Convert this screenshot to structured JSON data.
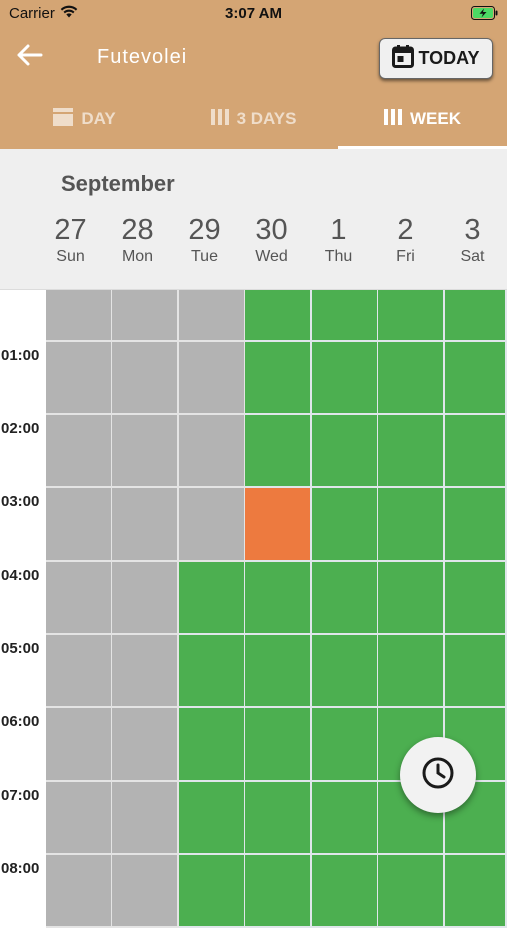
{
  "status_bar": {
    "carrier": "Carrier",
    "time": "3:07 AM"
  },
  "nav": {
    "title": "Futevolei",
    "today_label": "TODAY"
  },
  "tabs": [
    {
      "label": "DAY",
      "active": false
    },
    {
      "label": "3 DAYS",
      "active": false
    },
    {
      "label": "WEEK",
      "active": true
    }
  ],
  "calendar": {
    "month": "September",
    "days": [
      {
        "num": "27",
        "name": "Sun"
      },
      {
        "num": "28",
        "name": "Mon"
      },
      {
        "num": "29",
        "name": "Tue"
      },
      {
        "num": "30",
        "name": "Wed"
      },
      {
        "num": "1",
        "name": "Thu"
      },
      {
        "num": "2",
        "name": "Fri"
      },
      {
        "num": "3",
        "name": "Sat"
      }
    ],
    "hours": [
      "01:00",
      "02:00",
      "03:00",
      "04:00",
      "05:00",
      "06:00",
      "07:00",
      "08:00"
    ],
    "slots": [
      [
        "past",
        "past",
        "past",
        "available",
        "available",
        "available",
        "available"
      ],
      [
        "past",
        "past",
        "past",
        "available",
        "available",
        "available",
        "available"
      ],
      [
        "past",
        "past",
        "past",
        "available",
        "available",
        "available",
        "available"
      ],
      [
        "past",
        "past",
        "past",
        "booked",
        "available",
        "available",
        "available"
      ],
      [
        "past",
        "past",
        "available",
        "available",
        "available",
        "available",
        "available"
      ],
      [
        "past",
        "past",
        "available",
        "available",
        "available",
        "available",
        "available"
      ],
      [
        "past",
        "past",
        "available",
        "available",
        "available",
        "available",
        "available"
      ],
      [
        "past",
        "past",
        "available",
        "available",
        "available",
        "available",
        "available"
      ],
      [
        "past",
        "past",
        "available",
        "available",
        "available",
        "available",
        "available"
      ]
    ]
  },
  "colors": {
    "header": "#d4a574",
    "available": "#4caf50",
    "past": "#b3b3b3",
    "booked": "#ed7a3f"
  },
  "icons": {
    "back": "arrow-left-icon",
    "today": "calendar-icon",
    "day_tab": "day-view-icon",
    "three_days_tab": "three-columns-icon",
    "week_tab": "week-columns-icon",
    "fab": "clock-icon"
  }
}
